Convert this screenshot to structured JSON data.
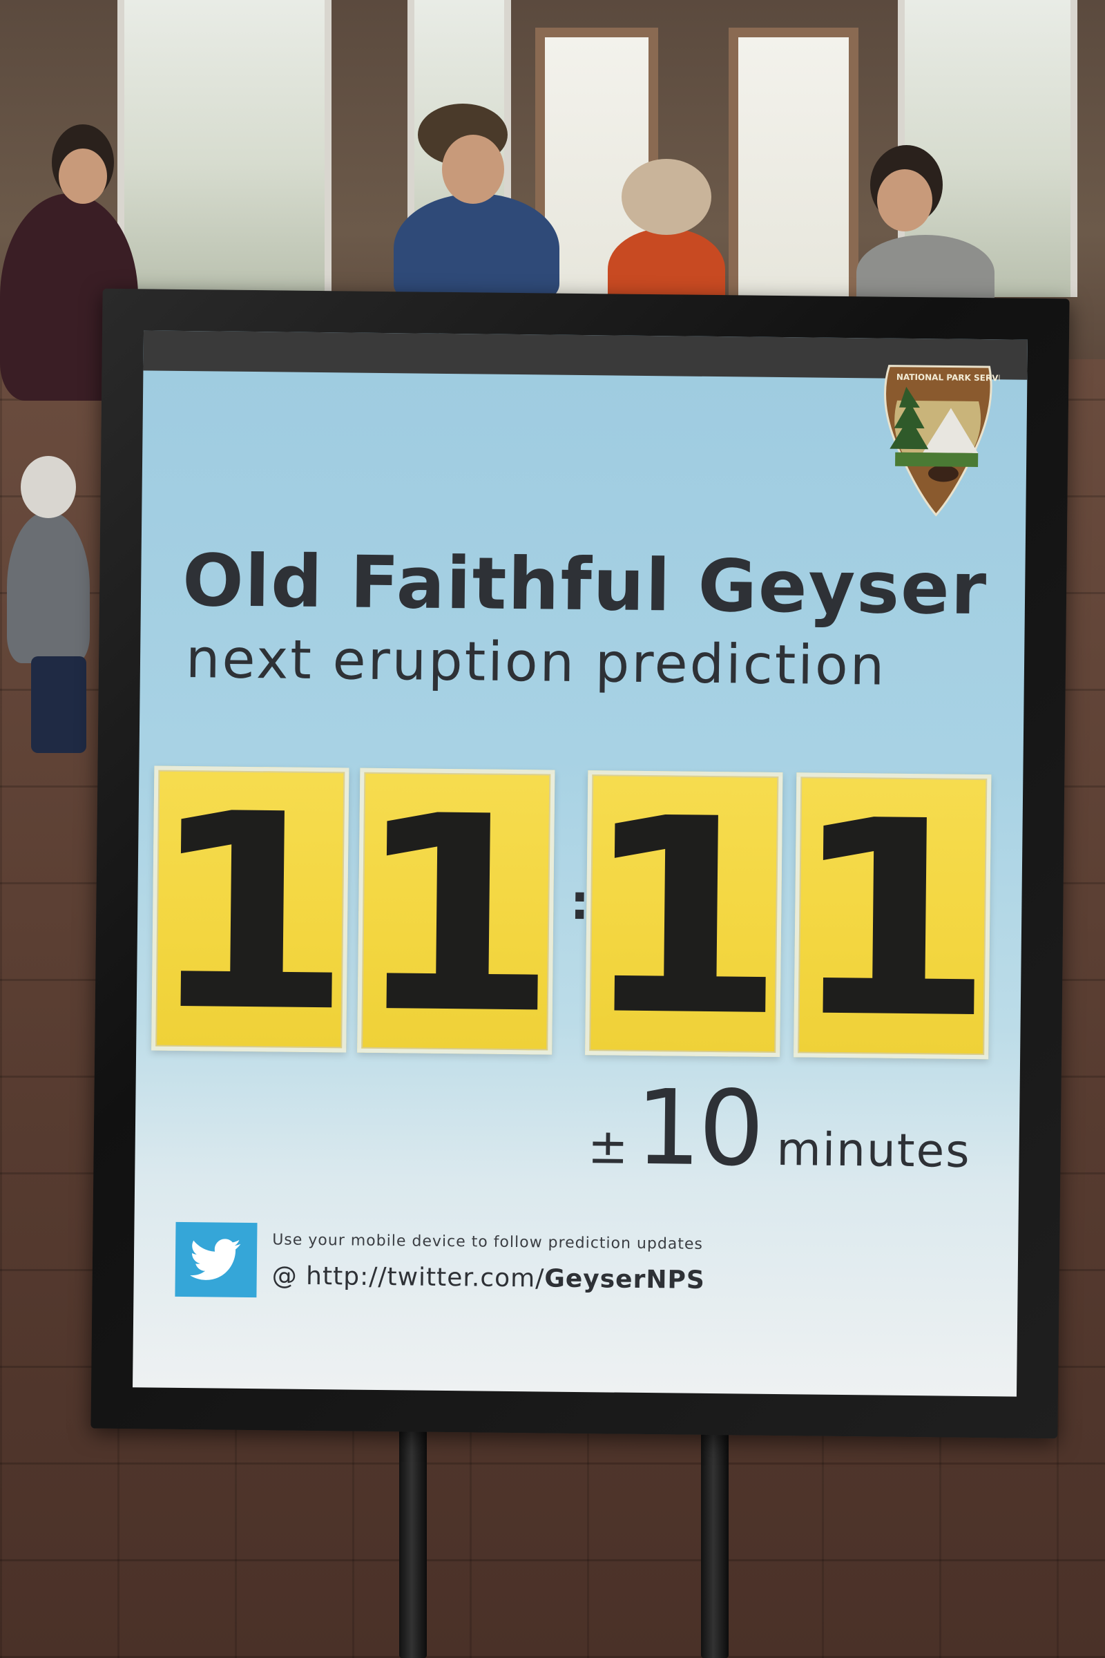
{
  "sign": {
    "title": "Old Faithful Geyser",
    "subtitle": "next eruption prediction",
    "time_digits": [
      "1",
      "1",
      "1",
      "1"
    ],
    "time_separator": ":",
    "tolerance_sign": "±",
    "tolerance_value": "10",
    "tolerance_unit": "minutes",
    "twitter_note": "Use your mobile device to follow prediction updates",
    "twitter_prefix": "@ http://twitter.com/",
    "twitter_handle": "GeyserNPS",
    "logo_text": "NATIONAL PARK SERVICE"
  },
  "icons": {
    "logo": "nps-arrowhead-icon",
    "social": "twitter-bird-icon"
  },
  "colors": {
    "panel_blue": "#a8d2e4",
    "card_yellow": "#f3d640",
    "twitter_blue": "#35a6d8",
    "frame": "#1a1a1a",
    "text": "#2e3136"
  }
}
